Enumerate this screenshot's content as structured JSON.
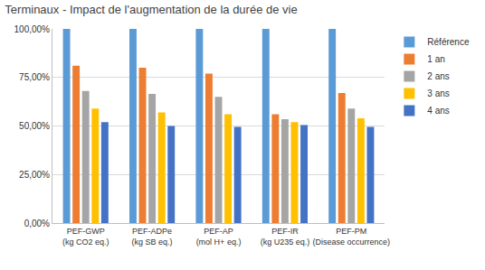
{
  "chart_data": {
    "type": "bar",
    "title": "Terminaux - Impact de l'augmentation de la durée de vie",
    "categories": [
      "PEF-GWP (kg CO2 eq.)",
      "PEF-ADPe (kg SB eq.)",
      "PEF-AP (mol H+ eq.)",
      "PEF-IR (kg U235 eq.)",
      "PEF-PM (Disease occurrence)"
    ],
    "series": [
      {
        "name": "Référence",
        "color": "#5b9bd5",
        "values": [
          100,
          100,
          100,
          100,
          100
        ]
      },
      {
        "name": "1 an",
        "color": "#ed7d31",
        "values": [
          81,
          80,
          77,
          56,
          67
        ]
      },
      {
        "name": "2 ans",
        "color": "#a5a5a5",
        "values": [
          68,
          66.5,
          65,
          53.5,
          59
        ]
      },
      {
        "name": "3 ans",
        "color": "#ffc000",
        "values": [
          59,
          57,
          56,
          52,
          54
        ]
      },
      {
        "name": "4 ans",
        "color": "#4472c4",
        "values": [
          52,
          50,
          49.5,
          50.5,
          49.5
        ]
      }
    ],
    "ylim": [
      0,
      100
    ],
    "yticks": [
      {
        "value": 0,
        "label": "0,00%"
      },
      {
        "value": 25,
        "label": "25,00%"
      },
      {
        "value": 50,
        "label": "50,00%"
      },
      {
        "value": 75,
        "label": "75,00%"
      },
      {
        "value": 100,
        "label": "100,00%"
      }
    ],
    "grid": true,
    "legend": "top-right"
  }
}
